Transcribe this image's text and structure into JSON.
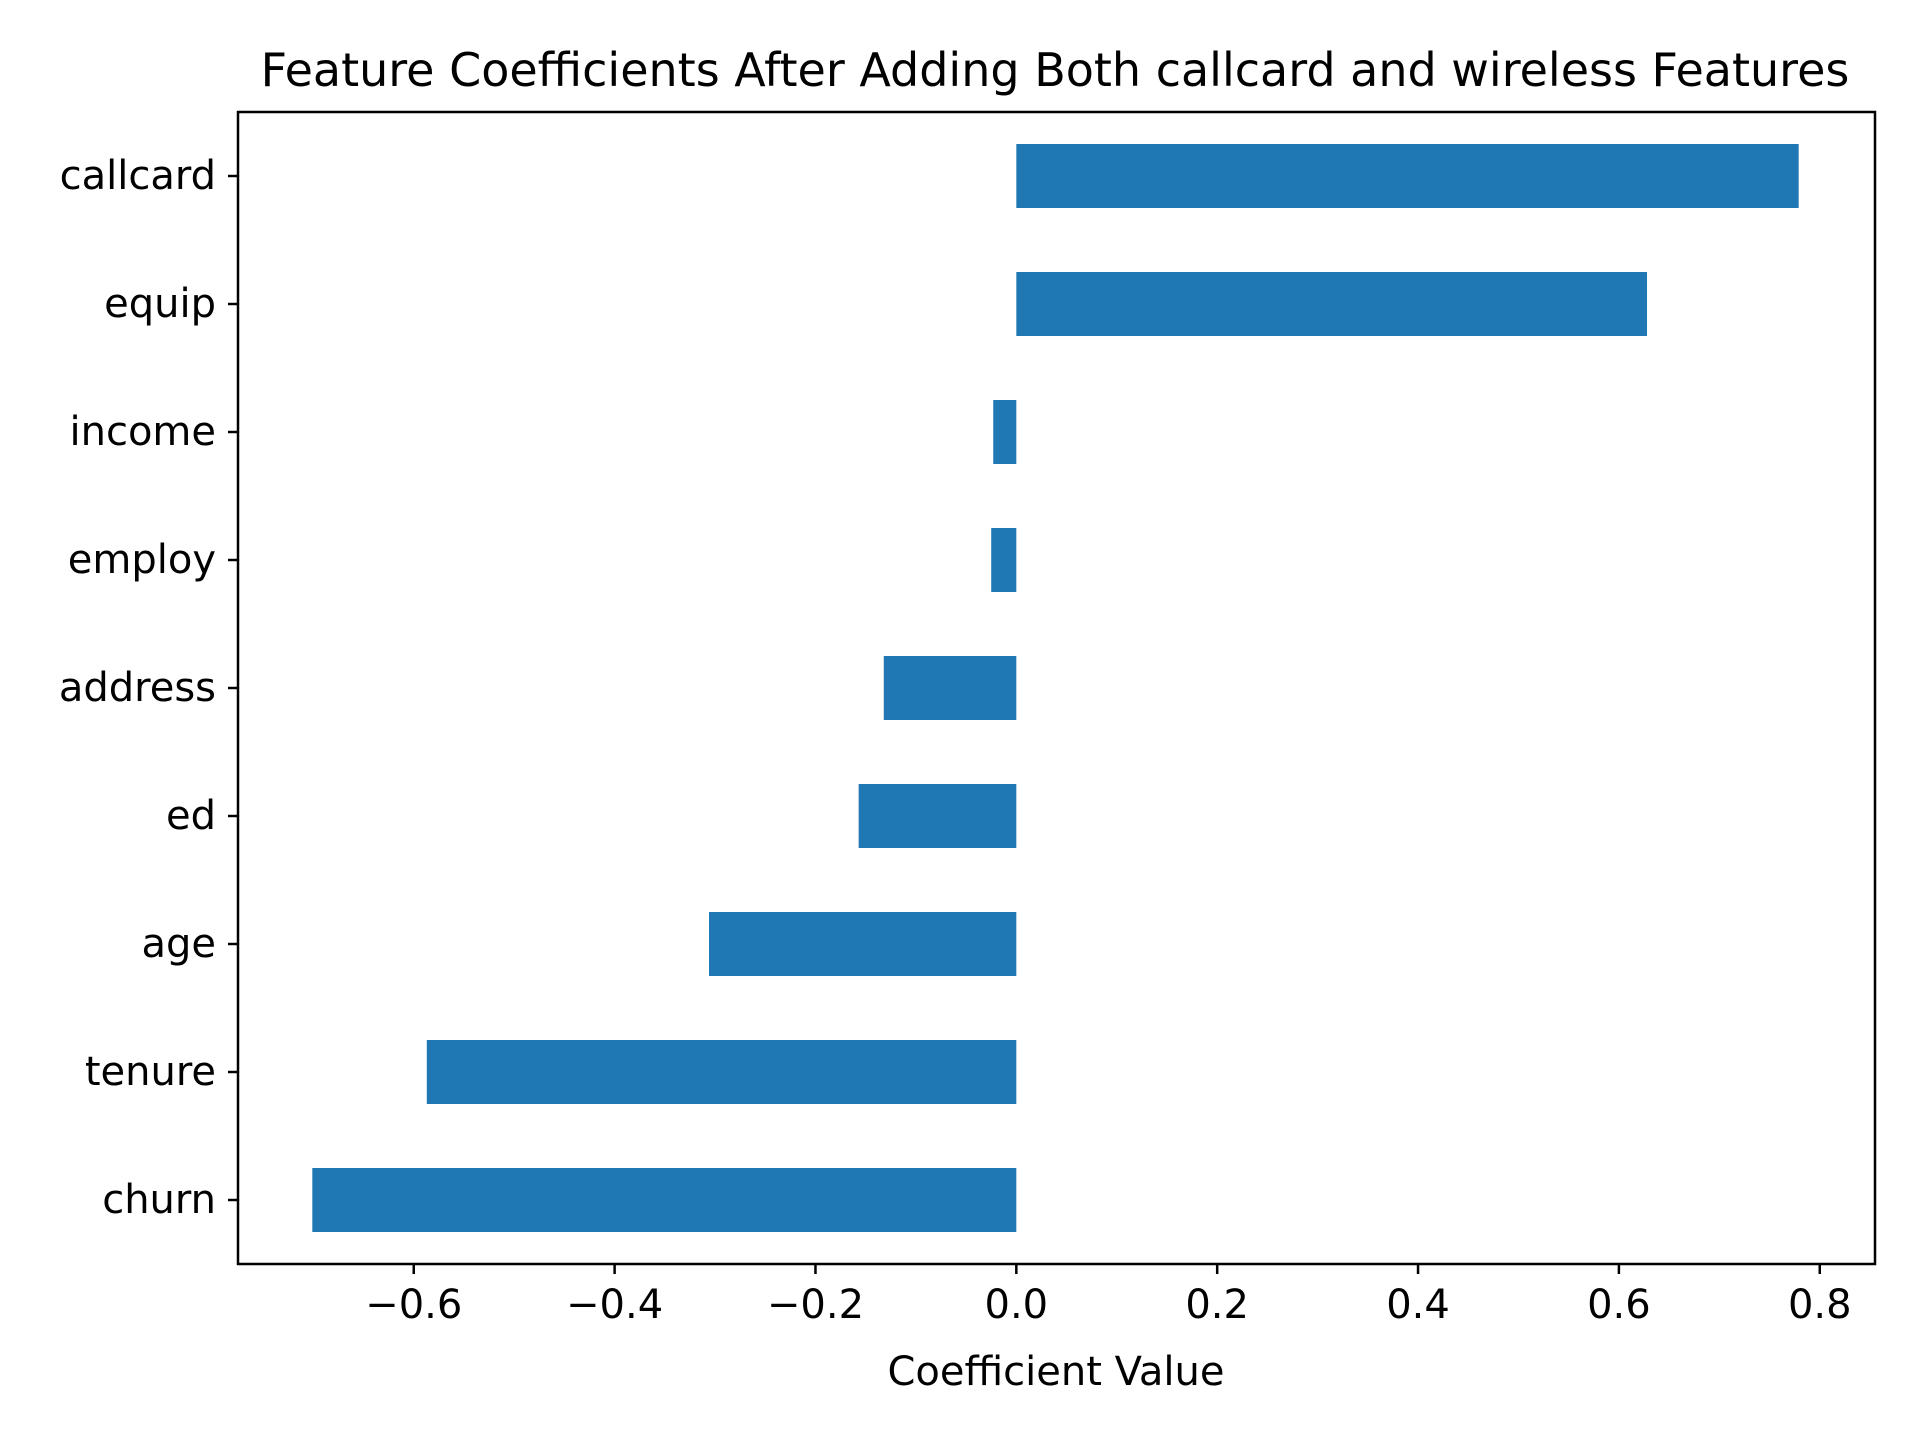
{
  "chart_data": {
    "type": "bar",
    "orientation": "horizontal",
    "title": "Feature Coefficients After Adding Both callcard and wireless Features",
    "xlabel": "Coefficient Value",
    "ylabel": "",
    "categories": [
      "callcard",
      "equip",
      "income",
      "employ",
      "address",
      "ed",
      "age",
      "tenure",
      "churn"
    ],
    "values": [
      0.779,
      0.628,
      -0.023,
      -0.025,
      -0.132,
      -0.157,
      -0.306,
      -0.587,
      -0.701
    ],
    "xlim": [
      -0.775,
      0.855
    ],
    "xticks": [
      -0.6,
      -0.4,
      -0.2,
      0.0,
      0.2,
      0.4,
      0.6,
      0.8
    ],
    "xtick_labels": [
      "−0.6",
      "−0.4",
      "−0.2",
      "0.0",
      "0.2",
      "0.4",
      "0.6",
      "0.8"
    ],
    "bar_color": "#1f77b4",
    "grid": false,
    "legend": "none"
  }
}
